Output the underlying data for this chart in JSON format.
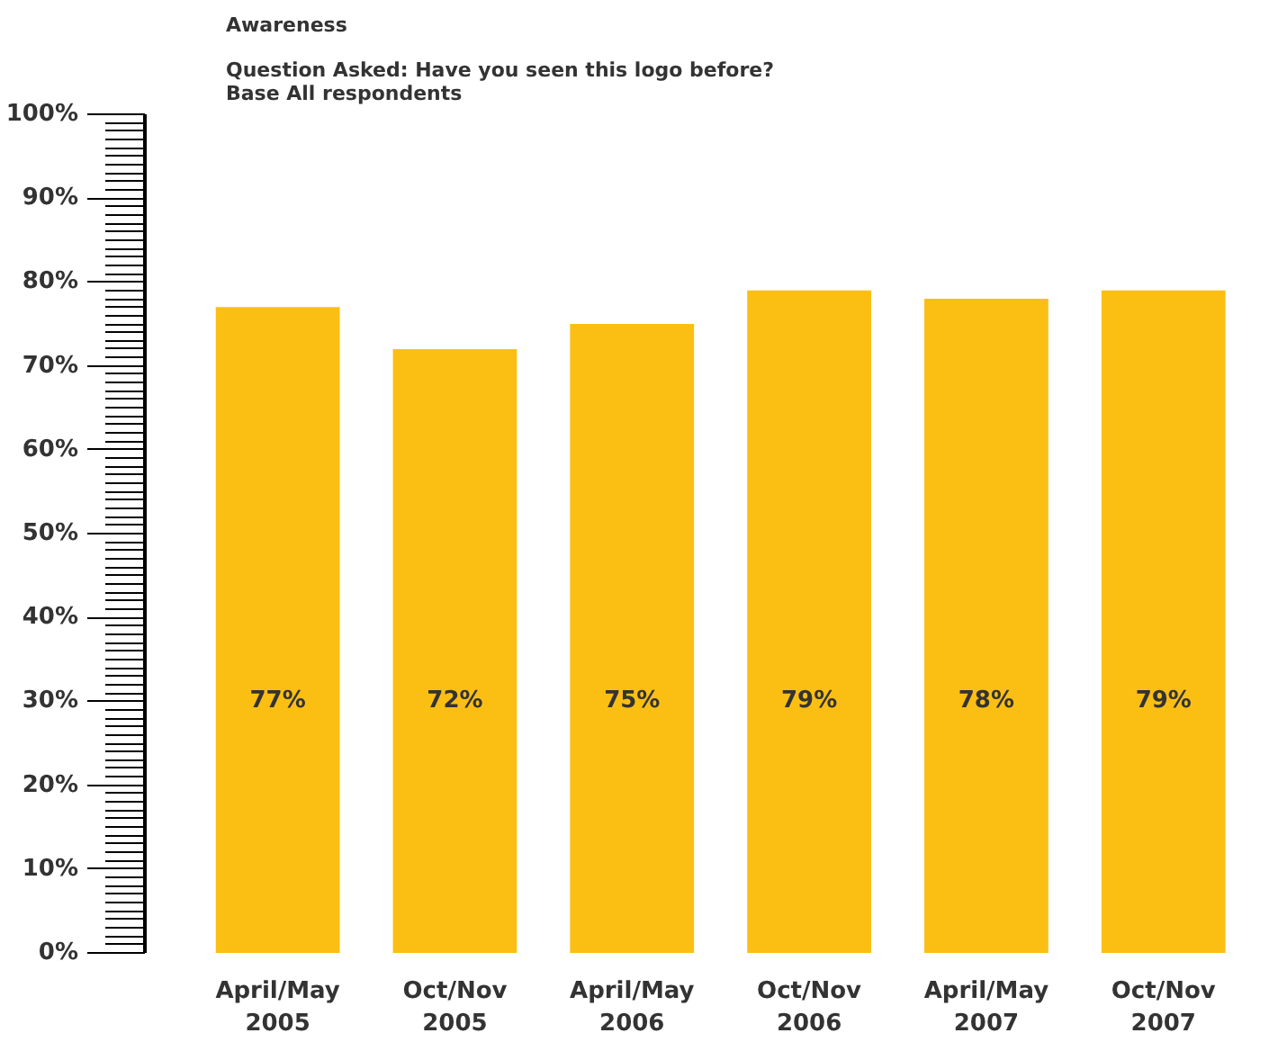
{
  "chart_data": {
    "type": "bar",
    "title": "Awareness",
    "subtitle": "Question Asked: Have you seen this logo before?\nBase All respondents",
    "categories": [
      "April/May\n2005",
      "Oct/Nov\n2005",
      "April/May\n2006",
      "Oct/Nov\n2006",
      "April/May\n2007",
      "Oct/Nov\n2007"
    ],
    "values": [
      77,
      72,
      75,
      79,
      78,
      79
    ],
    "value_labels": [
      "77%",
      "72%",
      "75%",
      "79%",
      "78%",
      "79%"
    ],
    "color": "#fbbf14",
    "ylim": [
      0,
      100
    ],
    "yticks": [
      {
        "value": 0,
        "label": "0%"
      },
      {
        "value": 10,
        "label": "10%"
      },
      {
        "value": 20,
        "label": "20%"
      },
      {
        "value": 30,
        "label": "30%"
      },
      {
        "value": 40,
        "label": "40%"
      },
      {
        "value": 50,
        "label": "50%"
      },
      {
        "value": 60,
        "label": "60%"
      },
      {
        "value": 70,
        "label": "70%"
      },
      {
        "value": 80,
        "label": "80%"
      },
      {
        "value": 90,
        "label": "90%"
      },
      {
        "value": 100,
        "label": "100%"
      }
    ],
    "grid": false
  }
}
